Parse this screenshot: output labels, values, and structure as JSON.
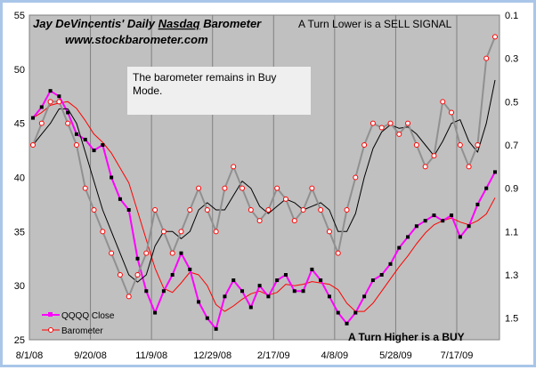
{
  "chart_data": {
    "type": "line",
    "title_prefix": "Jay DeVincentis' Daily ",
    "title_underlined": "Nasdaq",
    "title_suffix": " Barometer",
    "subtitle": "www.stockbarometer.com",
    "annotations": {
      "sell": "A Turn Lower is a SELL  SIGNAL",
      "buy": "A Turn Higher is a BUY",
      "box": [
        "The barometer remains in Buy",
        "Mode."
      ]
    },
    "x_tick_labels": [
      "8/1/08",
      "9/20/08",
      "11/9/08",
      "12/29/08",
      "2/17/09",
      "4/8/09",
      "5/28/09",
      "7/17/09"
    ],
    "x_range": [
      "8/1/08",
      "7/31/09"
    ],
    "y_left": {
      "ticks": [
        25,
        30,
        35,
        40,
        45,
        50,
        55
      ],
      "range": [
        25,
        55
      ]
    },
    "y_right": {
      "ticks": [
        "0.1",
        "0.3",
        "0.5",
        "0.7",
        "0.9",
        "1.1",
        "1.3",
        "1.5"
      ],
      "range": [
        0.1,
        1.6
      ],
      "inverted": true
    },
    "legend": {
      "placement": "bottom-left"
    },
    "series": [
      {
        "name": "QQQQ Close",
        "axis": "left",
        "color": "#ff00ff",
        "values": [
          45.5,
          46.5,
          48.0,
          47.5,
          46.0,
          44.0,
          43.5,
          42.5,
          43.0,
          40.0,
          38.0,
          37.0,
          32.5,
          29.5,
          27.5,
          29.5,
          31.0,
          33.0,
          31.5,
          28.5,
          27.0,
          26.0,
          29.0,
          30.5,
          29.5,
          28.0,
          30.0,
          29.0,
          30.5,
          31.0,
          29.5,
          29.5,
          31.5,
          30.5,
          29.0,
          27.5,
          26.5,
          27.5,
          29.0,
          30.5,
          31.0,
          32.0,
          33.5,
          34.5,
          35.5,
          36.0,
          36.5,
          36.0,
          36.5,
          34.5,
          35.5,
          37.5,
          39.0,
          40.5
        ]
      },
      {
        "name": "Barometer",
        "axis": "right",
        "color": "#ff0000",
        "values": [
          0.7,
          0.6,
          0.5,
          0.5,
          0.6,
          0.7,
          0.9,
          1.0,
          1.1,
          1.2,
          1.3,
          1.4,
          1.3,
          1.2,
          1.0,
          1.1,
          1.2,
          1.1,
          1.0,
          0.9,
          1.0,
          1.1,
          0.9,
          0.8,
          0.9,
          1.0,
          1.05,
          1.0,
          0.9,
          0.95,
          1.05,
          1.0,
          0.9,
          1.0,
          1.1,
          1.2,
          1.0,
          0.85,
          0.7,
          0.6,
          0.62,
          0.6,
          0.65,
          0.6,
          0.7,
          0.8,
          0.75,
          0.5,
          0.55,
          0.7,
          0.8,
          0.7,
          0.3,
          0.2
        ]
      }
    ],
    "moving_average_color": "#000000",
    "plot_background": "#c0c0c0"
  }
}
